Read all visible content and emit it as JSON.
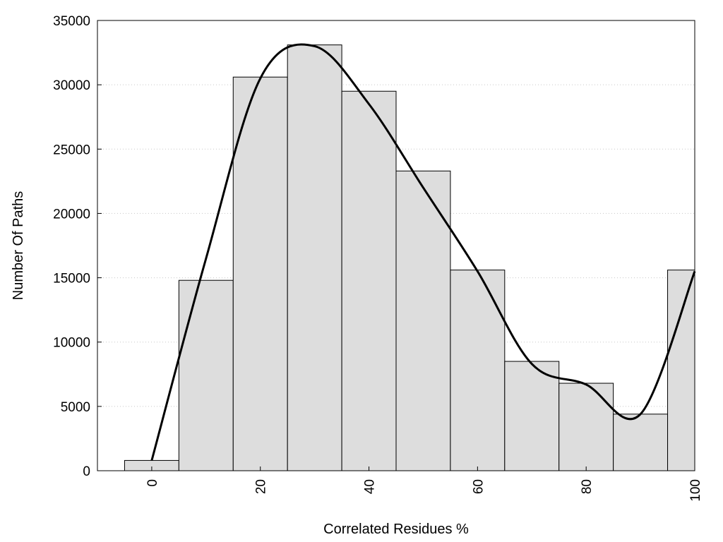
{
  "chart_data": {
    "type": "bar",
    "title": "",
    "xlabel": "Correlated Residues %",
    "ylabel": "Number Of Paths",
    "xlim": [
      -10,
      100
    ],
    "ylim": [
      0,
      35000
    ],
    "x_ticks": [
      0,
      20,
      40,
      60,
      80,
      100
    ],
    "y_ticks": [
      0,
      5000,
      10000,
      15000,
      20000,
      25000,
      30000,
      35000
    ],
    "grid": "horizontal dotted",
    "bar_color": "#dddddd",
    "bar_edge_color": "#000000",
    "bars": [
      {
        "x0": -5,
        "x1": 5,
        "value": 800
      },
      {
        "x0": 5,
        "x1": 15,
        "value": 14800
      },
      {
        "x0": 15,
        "x1": 25,
        "value": 30600
      },
      {
        "x0": 25,
        "x1": 35,
        "value": 33100
      },
      {
        "x0": 35,
        "x1": 45,
        "value": 29500
      },
      {
        "x0": 45,
        "x1": 55,
        "value": 23300
      },
      {
        "x0": 55,
        "x1": 65,
        "value": 15600
      },
      {
        "x0": 65,
        "x1": 75,
        "value": 8500
      },
      {
        "x0": 75,
        "x1": 85,
        "value": 6800
      },
      {
        "x0": 85,
        "x1": 95,
        "value": 4400
      },
      {
        "x0": 95,
        "x1": 100,
        "value": 15600
      }
    ],
    "curve": {
      "color": "#000000",
      "points": [
        {
          "x": 0,
          "y": 800
        },
        {
          "x": 10,
          "y": 16500
        },
        {
          "x": 20,
          "y": 30500
        },
        {
          "x": 30,
          "y": 33000
        },
        {
          "x": 40,
          "y": 28500
        },
        {
          "x": 50,
          "y": 22000
        },
        {
          "x": 60,
          "y": 15500
        },
        {
          "x": 70,
          "y": 8300
        },
        {
          "x": 80,
          "y": 6700
        },
        {
          "x": 90,
          "y": 4400
        },
        {
          "x": 100,
          "y": 15500
        }
      ]
    }
  }
}
